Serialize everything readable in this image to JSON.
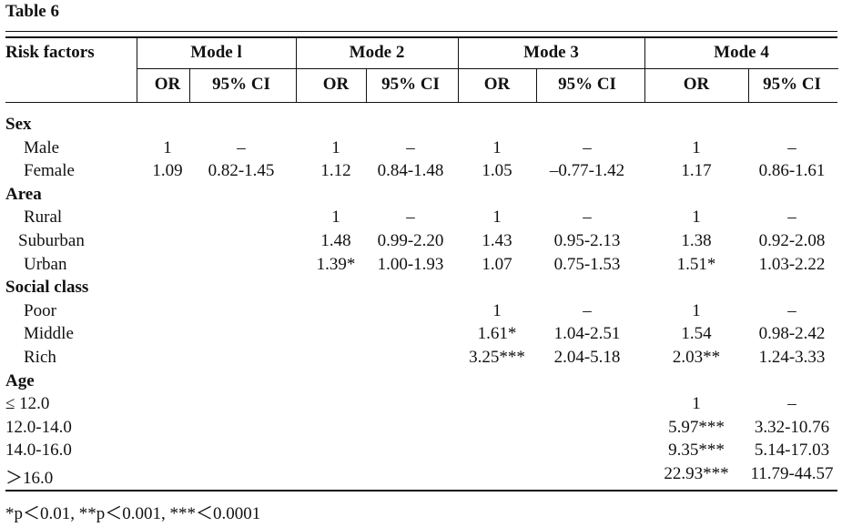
{
  "title": "Table 6",
  "header": {
    "risk_factors": "Risk factors",
    "modes": [
      "Mode l",
      "Mode 2",
      "Mode 3",
      "Mode 4"
    ],
    "or_label": "OR",
    "ci_label": "95% CI"
  },
  "rows": [
    {
      "label": "Sex",
      "group": true,
      "cells": [
        "",
        "",
        "",
        "",
        "",
        "",
        "",
        ""
      ]
    },
    {
      "label": "Male",
      "indent": 1,
      "cells": [
        "1",
        "–",
        "1",
        "–",
        "1",
        "–",
        "1",
        "–"
      ]
    },
    {
      "label": "Female",
      "indent": 1,
      "cells": [
        "1.09",
        "0.82-1.45",
        "1.12",
        "0.84-1.48",
        "1.05",
        "–0.77-1.42",
        "1.17",
        "0.86-1.61"
      ]
    },
    {
      "label": "Area",
      "group": true,
      "cells": [
        "",
        "",
        "",
        "",
        "",
        "",
        "",
        ""
      ]
    },
    {
      "label": "Rural",
      "indent": 1,
      "cells": [
        "",
        "",
        "1",
        "–",
        "1",
        "–",
        "1",
        "–"
      ]
    },
    {
      "label": "Suburban",
      "indent": 2,
      "cells": [
        "",
        "",
        "1.48",
        "0.99-2.20",
        "1.43",
        "0.95-2.13",
        "1.38",
        "0.92-2.08"
      ]
    },
    {
      "label": "Urban",
      "indent": 1,
      "cells": [
        "",
        "",
        "1.39*",
        "1.00-1.93",
        "1.07",
        "0.75-1.53",
        "1.51*",
        "1.03-2.22"
      ]
    },
    {
      "label": "Social class",
      "group": true,
      "cells": [
        "",
        "",
        "",
        "",
        "",
        "",
        "",
        ""
      ]
    },
    {
      "label": "Poor",
      "indent": 1,
      "cells": [
        "",
        "",
        "",
        "",
        "1",
        "–",
        "1",
        "–"
      ]
    },
    {
      "label": "Middle",
      "indent": 1,
      "cells": [
        "",
        "",
        "",
        "",
        "1.61*",
        "1.04-2.51",
        "1.54",
        "0.98-2.42"
      ]
    },
    {
      "label": "Rich",
      "indent": 1,
      "cells": [
        "",
        "",
        "",
        "",
        "3.25***",
        "2.04-5.18",
        "2.03**",
        "1.24-3.33"
      ]
    },
    {
      "label": "Age",
      "group": true,
      "cells": [
        "",
        "",
        "",
        "",
        "",
        "",
        "",
        ""
      ]
    },
    {
      "label": "≤ 12.0",
      "indent": 0,
      "cells": [
        "",
        "",
        "",
        "",
        "",
        "",
        "1",
        "–"
      ]
    },
    {
      "label": "12.0-14.0",
      "indent": 0,
      "cells": [
        "",
        "",
        "",
        "",
        "",
        "",
        "5.97***",
        "3.32-10.76"
      ]
    },
    {
      "label": "14.0-16.0",
      "indent": 0,
      "cells": [
        "",
        "",
        "",
        "",
        "",
        "",
        "9.35***",
        "5.14-17.03"
      ]
    },
    {
      "label": "＞16.0",
      "indent": 0,
      "cells": [
        "",
        "",
        "",
        "",
        "",
        "",
        "22.93***",
        "11.79-44.57"
      ]
    }
  ],
  "footnote": "*p＜0.01, **p＜0.001, ***＜0.0001"
}
